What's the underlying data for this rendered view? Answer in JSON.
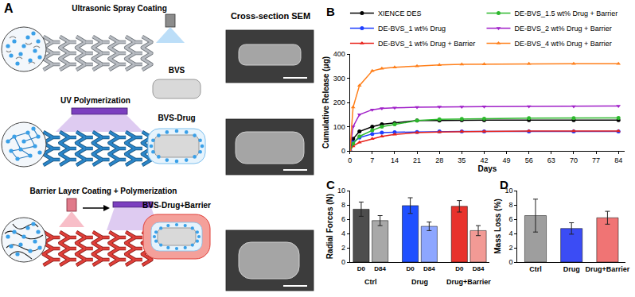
{
  "diagram": {
    "panel": "A",
    "steps": [
      "Ultrasonic Spray Coating",
      "UV Polymerization",
      "Barrier Layer Coating + Polymerization"
    ],
    "column_title": "Cross-section SEM",
    "cross_sections": [
      "BVS",
      "BVS-Drug",
      "BVS-Drug+Barrier"
    ]
  },
  "chart_data": [
    {
      "type": "line",
      "title": "B",
      "xlabel": "Days",
      "ylabel": "Cumulative Release (μg)",
      "x": [
        0,
        1,
        3,
        7,
        10,
        14,
        21,
        28,
        35,
        42,
        56,
        70,
        84
      ],
      "xlim": [
        0,
        86
      ],
      "xticks": [
        0,
        7,
        14,
        21,
        28,
        35,
        42,
        49,
        56,
        63,
        70,
        77,
        84
      ],
      "ylim": [
        0,
        400
      ],
      "yticks": [
        0,
        100,
        200,
        300,
        400
      ],
      "grid": false,
      "legend": "top",
      "series": [
        {
          "name": "XIENCE DES",
          "color": "#000000",
          "marker": "circle",
          "line_style": "solid",
          "values": [
            0,
            50,
            80,
            100,
            110,
            115,
            125,
            125,
            127,
            127,
            127,
            127,
            127
          ]
        },
        {
          "name": "DE-BVS_1 wt% Drug",
          "color": "#1f3fff",
          "marker": "circle",
          "line_style": "solid",
          "values": [
            0,
            35,
            55,
            70,
            75,
            77,
            78,
            80,
            80,
            80,
            80,
            80,
            80
          ]
        },
        {
          "name": "DE-BVS_1 wt% Drug + Barrier",
          "color": "#e8221b",
          "marker": "triangle-up",
          "line_style": "solid",
          "values": [
            0,
            20,
            35,
            50,
            60,
            68,
            75,
            78,
            80,
            80,
            82,
            82,
            82
          ]
        },
        {
          "name": "DE-BVS_1.5 wt% Drug + Barrier",
          "color": "#2db82d",
          "marker": "circle",
          "line_style": "solid",
          "values": [
            0,
            30,
            60,
            85,
            100,
            110,
            125,
            130,
            132,
            133,
            135,
            135,
            136
          ]
        },
        {
          "name": "DE-BVS_2 wt% Drug + Barrier",
          "color": "#a020c8",
          "marker": "triangle-down",
          "line_style": "solid",
          "values": [
            0,
            100,
            150,
            170,
            175,
            178,
            180,
            182,
            182,
            183,
            184,
            184,
            185
          ]
        },
        {
          "name": "DE-BVS_4 wt% Drug + Barrier",
          "color": "#ff7f1a",
          "marker": "triangle-up",
          "line_style": "solid",
          "values": [
            0,
            180,
            270,
            330,
            340,
            345,
            350,
            355,
            357,
            358,
            360,
            360,
            360
          ]
        }
      ]
    },
    {
      "type": "bar",
      "title": "C",
      "ylabel": "Radial Forces (N)",
      "categories": [
        "Ctrl",
        "Drug",
        "Drug+Barrier"
      ],
      "ylim": [
        0,
        10
      ],
      "yticks": [
        0,
        2,
        4,
        6,
        8,
        10
      ],
      "grid": false,
      "series": [
        {
          "name": "D0",
          "values": [
            7.4,
            7.9,
            7.8
          ],
          "errors": [
            1.0,
            1.1,
            0.8
          ],
          "colors": [
            "#4d4d4d",
            "#1f4fff",
            "#e8322c"
          ]
        },
        {
          "name": "D84",
          "values": [
            5.8,
            5.0,
            4.4
          ],
          "errors": [
            0.7,
            0.6,
            0.7
          ],
          "colors": [
            "#a8a8a8",
            "#8da6ff",
            "#f29a95"
          ]
        }
      ]
    },
    {
      "type": "bar",
      "title": "D",
      "ylabel": "Mass Loss (%)",
      "categories": [
        "Ctrl",
        "Drug",
        "Drug+Barrier"
      ],
      "values": [
        6.5,
        4.7,
        6.2
      ],
      "errors": [
        2.3,
        0.8,
        0.9
      ],
      "colors": [
        "#9e9e9e",
        "#3b4cf5",
        "#f07474"
      ],
      "ylim": [
        0,
        10
      ],
      "yticks": [
        0,
        2,
        4,
        6,
        8,
        10
      ],
      "grid": false
    }
  ]
}
